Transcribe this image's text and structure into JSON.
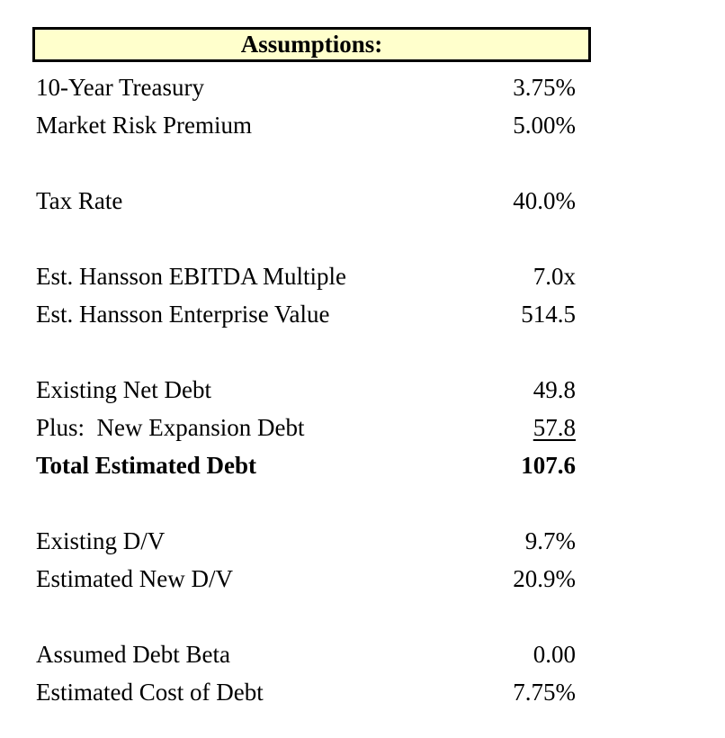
{
  "header": {
    "title": "Assumptions:"
  },
  "rows": [
    {
      "label": "10-Year Treasury",
      "value": "3.75%"
    },
    {
      "label": "Market Risk Premium",
      "value": "5.00%"
    },
    {
      "label": "",
      "value": ""
    },
    {
      "label": "Tax Rate",
      "value": "40.0%"
    },
    {
      "label": "",
      "value": ""
    },
    {
      "label": "Est. Hansson EBITDA Multiple",
      "value": "7.0x"
    },
    {
      "label": "Est. Hansson Enterprise Value",
      "value": "514.5"
    },
    {
      "label": "",
      "value": ""
    },
    {
      "label": "Existing Net Debt",
      "value": "49.8"
    },
    {
      "label": "Plus:  New Expansion Debt",
      "value": "57.8"
    },
    {
      "label": "Total Estimated Debt",
      "value": "107.6"
    },
    {
      "label": "",
      "value": ""
    },
    {
      "label": "Existing D/V",
      "value": "9.7%"
    },
    {
      "label": "Estimated New D/V",
      "value": "20.9%"
    },
    {
      "label": "",
      "value": ""
    },
    {
      "label": "Assumed Debt Beta",
      "value": "0.00"
    },
    {
      "label": "Estimated Cost of Debt",
      "value": "7.75%"
    }
  ],
  "colors": {
    "header_bg": "#FFFFCC",
    "border": "#000000",
    "text": "#000000",
    "background": "#FFFFFF"
  }
}
